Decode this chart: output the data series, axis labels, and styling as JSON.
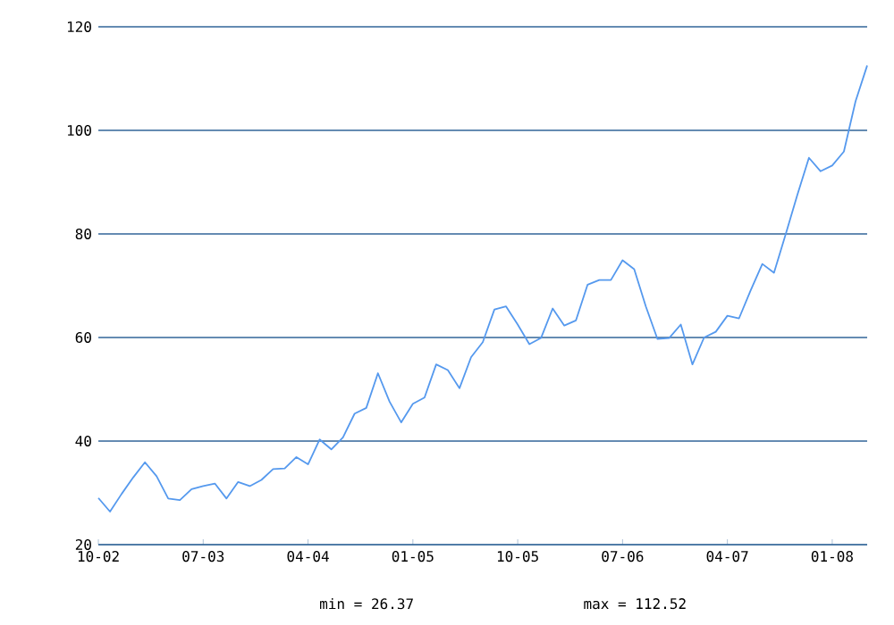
{
  "chart_data": {
    "type": "line",
    "color": "#5599ee",
    "x": [
      "2002-10",
      "2002-11",
      "2002-12",
      "2003-01",
      "2003-02",
      "2003-03",
      "2003-04",
      "2003-05",
      "2003-06",
      "2003-07",
      "2003-08",
      "2003-09",
      "2003-10",
      "2003-11",
      "2003-12",
      "2004-01",
      "2004-02",
      "2004-03",
      "2004-04",
      "2004-05",
      "2004-06",
      "2004-07",
      "2004-08",
      "2004-09",
      "2004-10",
      "2004-11",
      "2004-12",
      "2005-01",
      "2005-02",
      "2005-03",
      "2005-04",
      "2005-05",
      "2005-06",
      "2005-07",
      "2005-08",
      "2005-09",
      "2005-10",
      "2005-11",
      "2005-12",
      "2006-01",
      "2006-02",
      "2006-03",
      "2006-04",
      "2006-05",
      "2006-06",
      "2006-07",
      "2006-08",
      "2006-09",
      "2006-10",
      "2006-11",
      "2006-12",
      "2007-01",
      "2007-02",
      "2007-03",
      "2007-04",
      "2007-05",
      "2007-06",
      "2007-07",
      "2007-08",
      "2007-09",
      "2007-10",
      "2007-11",
      "2007-12",
      "2008-01",
      "2008-02",
      "2008-03",
      "2008-04"
    ],
    "values": [
      29.0,
      26.37,
      29.8,
      33.0,
      35.9,
      33.2,
      28.9,
      28.6,
      30.7,
      31.3,
      31.8,
      28.9,
      32.1,
      31.3,
      32.5,
      34.6,
      34.7,
      36.9,
      35.5,
      40.3,
      38.4,
      40.7,
      45.3,
      46.4,
      53.1,
      47.6,
      43.6,
      47.2,
      48.4,
      54.8,
      53.7,
      50.2,
      56.2,
      59.1,
      65.4,
      66.0,
      62.5,
      58.7,
      59.9,
      65.6,
      62.3,
      63.3,
      70.2,
      71.1,
      71.1,
      74.9,
      73.2,
      66.0,
      59.7,
      59.9,
      62.5,
      54.8,
      60.0,
      61.1,
      64.2,
      63.7,
      69.1,
      74.2,
      72.5,
      79.9,
      87.5,
      94.7,
      92.1,
      93.2,
      95.9,
      105.6,
      112.52
    ],
    "xlim": [
      "2002-10",
      "2008-04"
    ],
    "xticks": [
      {
        "value": "2002-10",
        "label": "10-02"
      },
      {
        "value": "2003-07",
        "label": "07-03"
      },
      {
        "value": "2004-04",
        "label": "04-04"
      },
      {
        "value": "2005-01",
        "label": "01-05"
      },
      {
        "value": "2005-10",
        "label": "10-05"
      },
      {
        "value": "2006-07",
        "label": "07-06"
      },
      {
        "value": "2007-04",
        "label": "04-07"
      },
      {
        "value": "2008-01",
        "label": "01-08"
      }
    ],
    "ylim": [
      20,
      120
    ],
    "yticks": [
      20,
      40,
      60,
      80,
      100,
      120
    ],
    "grid": "y",
    "annotations": [
      "min = 26.37",
      "max = 112.52"
    ]
  }
}
